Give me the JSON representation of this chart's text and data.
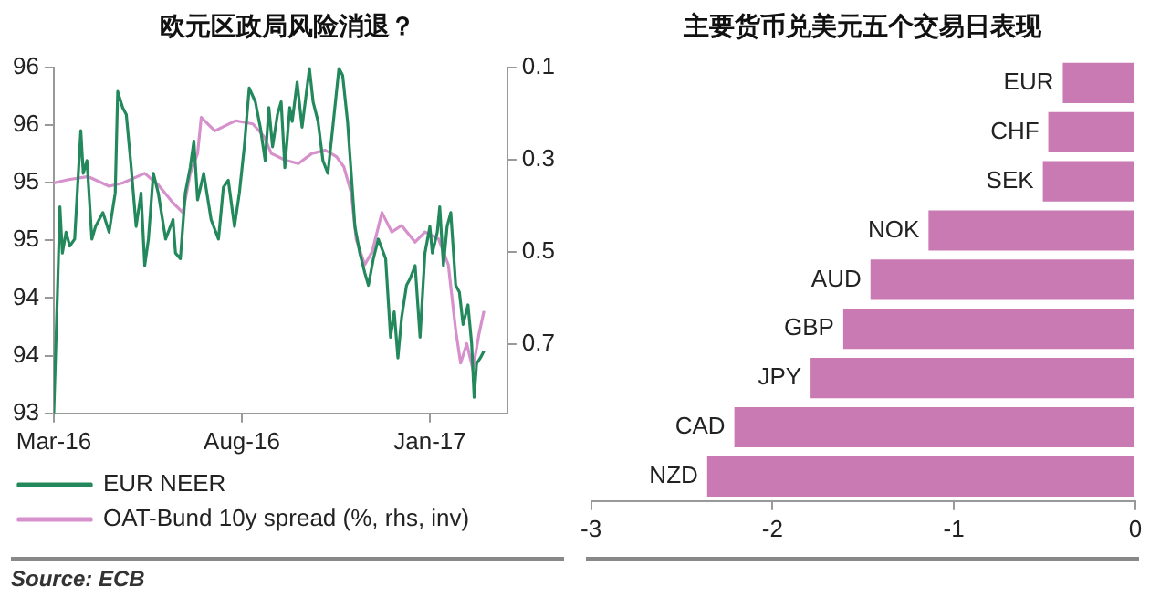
{
  "chart_data": [
    {
      "type": "line",
      "title": "欧元区政局风险消退？",
      "xlim": [
        "2016-03-01",
        "2017-03-05"
      ],
      "xticks": [
        {
          "value": "2016-03-01",
          "label": "Mar-16"
        },
        {
          "value": "2016-08-01",
          "label": "Aug-16"
        },
        {
          "value": "2017-01-01",
          "label": "Jan-17"
        }
      ],
      "ylim": [
        93,
        96
      ],
      "yticks": [
        93,
        {
          "value": 93.5,
          "label": "94"
        },
        94,
        {
          "value": 94.5,
          "label": "95"
        },
        95,
        {
          "value": 95.5,
          "label": "96"
        },
        96
      ],
      "y2lim": [
        0.85,
        0.1
      ],
      "y2ticks": [
        0.1,
        0.3,
        0.5,
        0.7
      ],
      "grid": false,
      "legend": "bottom",
      "series": [
        {
          "name": "EUR NEER",
          "color": "#23895c",
          "x": [
            "2016-03-01",
            "2016-03-04",
            "2016-03-06",
            "2016-03-08",
            "2016-03-11",
            "2016-03-14",
            "2016-03-18",
            "2016-03-21",
            "2016-03-23",
            "2016-03-25",
            "2016-03-28",
            "2016-04-01",
            "2016-04-04",
            "2016-04-10",
            "2016-04-15",
            "2016-04-20",
            "2016-04-22",
            "2016-04-26",
            "2016-04-29",
            "2016-05-03",
            "2016-05-07",
            "2016-05-11",
            "2016-05-14",
            "2016-05-17",
            "2016-05-21",
            "2016-05-25",
            "2016-05-31",
            "2016-06-06",
            "2016-06-08",
            "2016-06-12",
            "2016-06-16",
            "2016-06-20",
            "2016-06-23",
            "2016-06-26",
            "2016-07-01",
            "2016-07-07",
            "2016-07-13",
            "2016-07-17",
            "2016-07-21",
            "2016-07-26",
            "2016-07-30",
            "2016-08-03",
            "2016-08-07",
            "2016-08-12",
            "2016-08-16",
            "2016-08-20",
            "2016-08-23",
            "2016-08-26",
            "2016-08-30",
            "2016-09-02",
            "2016-09-05",
            "2016-09-09",
            "2016-09-11",
            "2016-09-15",
            "2016-09-19",
            "2016-09-25",
            "2016-09-28",
            "2016-10-02",
            "2016-10-06",
            "2016-10-10",
            "2016-10-14",
            "2016-10-19",
            "2016-10-22",
            "2016-10-26",
            "2016-10-29",
            "2016-11-01",
            "2016-11-05",
            "2016-11-09",
            "2016-11-12",
            "2016-11-16",
            "2016-11-20",
            "2016-11-26",
            "2016-11-30",
            "2016-12-03",
            "2016-12-06",
            "2016-12-09",
            "2016-12-13",
            "2016-12-16",
            "2016-12-20",
            "2016-12-24",
            "2016-12-28",
            "2017-01-01",
            "2017-01-03",
            "2017-01-07",
            "2017-01-09",
            "2017-01-12",
            "2017-01-15",
            "2017-01-18",
            "2017-01-22",
            "2017-01-25",
            "2017-01-28",
            "2017-02-01",
            "2017-02-04",
            "2017-02-06",
            "2017-02-08",
            "2017-02-11",
            "2017-02-14"
          ],
          "values": [
            93.0,
            94.05,
            94.79,
            94.39,
            94.57,
            94.45,
            94.51,
            95.08,
            95.45,
            95.08,
            95.19,
            94.51,
            94.62,
            94.74,
            94.57,
            94.91,
            95.79,
            95.65,
            95.59,
            95.13,
            94.62,
            94.91,
            94.28,
            94.51,
            95.08,
            94.91,
            94.51,
            94.68,
            94.39,
            94.34,
            94.91,
            95.13,
            95.36,
            94.85,
            95.08,
            94.68,
            94.51,
            94.96,
            95.02,
            94.62,
            94.91,
            95.31,
            95.82,
            95.7,
            95.48,
            95.19,
            95.65,
            95.31,
            95.59,
            95.7,
            95.13,
            95.65,
            95.53,
            95.87,
            95.48,
            95.99,
            95.7,
            95.53,
            95.19,
            95.08,
            95.48,
            95.99,
            95.93,
            95.53,
            95.08,
            94.62,
            94.39,
            94.22,
            94.11,
            94.34,
            94.51,
            94.34,
            93.66,
            93.88,
            93.48,
            93.83,
            94.11,
            94.17,
            94.28,
            93.66,
            94.39,
            94.62,
            94.39,
            94.57,
            94.79,
            94.28,
            94.62,
            94.74,
            94.11,
            94.05,
            93.77,
            93.94,
            93.6,
            93.14,
            93.43,
            93.48,
            93.54
          ]
        },
        {
          "name": "OAT-Bund 10y spread (%, rhs, inv)",
          "color": "#d690cc",
          "axis": "y2",
          "x": [
            "2016-03-01",
            "2016-03-12",
            "2016-03-29",
            "2016-04-15",
            "2016-04-26",
            "2016-05-14",
            "2016-05-25",
            "2016-06-06",
            "2016-06-14",
            "2016-06-20",
            "2016-06-26",
            "2016-06-29",
            "2016-07-10",
            "2016-07-27",
            "2016-08-10",
            "2016-08-19",
            "2016-08-25",
            "2016-09-05",
            "2016-09-16",
            "2016-09-27",
            "2016-10-08",
            "2016-10-17",
            "2016-10-23",
            "2016-10-29",
            "2016-11-02",
            "2016-11-09",
            "2016-11-15",
            "2016-11-23",
            "2016-12-01",
            "2016-12-09",
            "2016-12-20",
            "2016-12-28",
            "2017-01-08",
            "2017-01-16",
            "2017-01-22",
            "2017-01-26",
            "2017-01-31",
            "2017-02-05",
            "2017-02-10",
            "2017-02-14"
          ],
          "values": [
            0.351,
            0.344,
            0.337,
            0.358,
            0.351,
            0.33,
            0.355,
            0.394,
            0.415,
            0.33,
            0.287,
            0.209,
            0.238,
            0.216,
            0.223,
            0.25,
            0.287,
            0.301,
            0.309,
            0.287,
            0.28,
            0.294,
            0.316,
            0.372,
            0.472,
            0.528,
            0.5,
            0.415,
            0.457,
            0.443,
            0.479,
            0.457,
            0.472,
            0.528,
            0.67,
            0.741,
            0.699,
            0.755,
            0.677,
            0.628
          ]
        }
      ],
      "annotations": [
        "Source: ECB"
      ]
    },
    {
      "type": "bar",
      "title": "主要货币兑美元五个交易日表现",
      "orientation": "horizontal",
      "categories": [
        "EUR",
        "CHF",
        "SEK",
        "NOK",
        "AUD",
        "GBP",
        "JPY",
        "CAD",
        "NZD"
      ],
      "values": [
        -0.4,
        -0.48,
        -0.51,
        -1.14,
        -1.46,
        -1.61,
        -1.79,
        -2.21,
        -2.36
      ],
      "color": "#c97ab2",
      "xlim": [
        -3,
        0
      ],
      "xticks": [
        -3,
        -2,
        -1,
        0
      ],
      "grid": false
    }
  ]
}
